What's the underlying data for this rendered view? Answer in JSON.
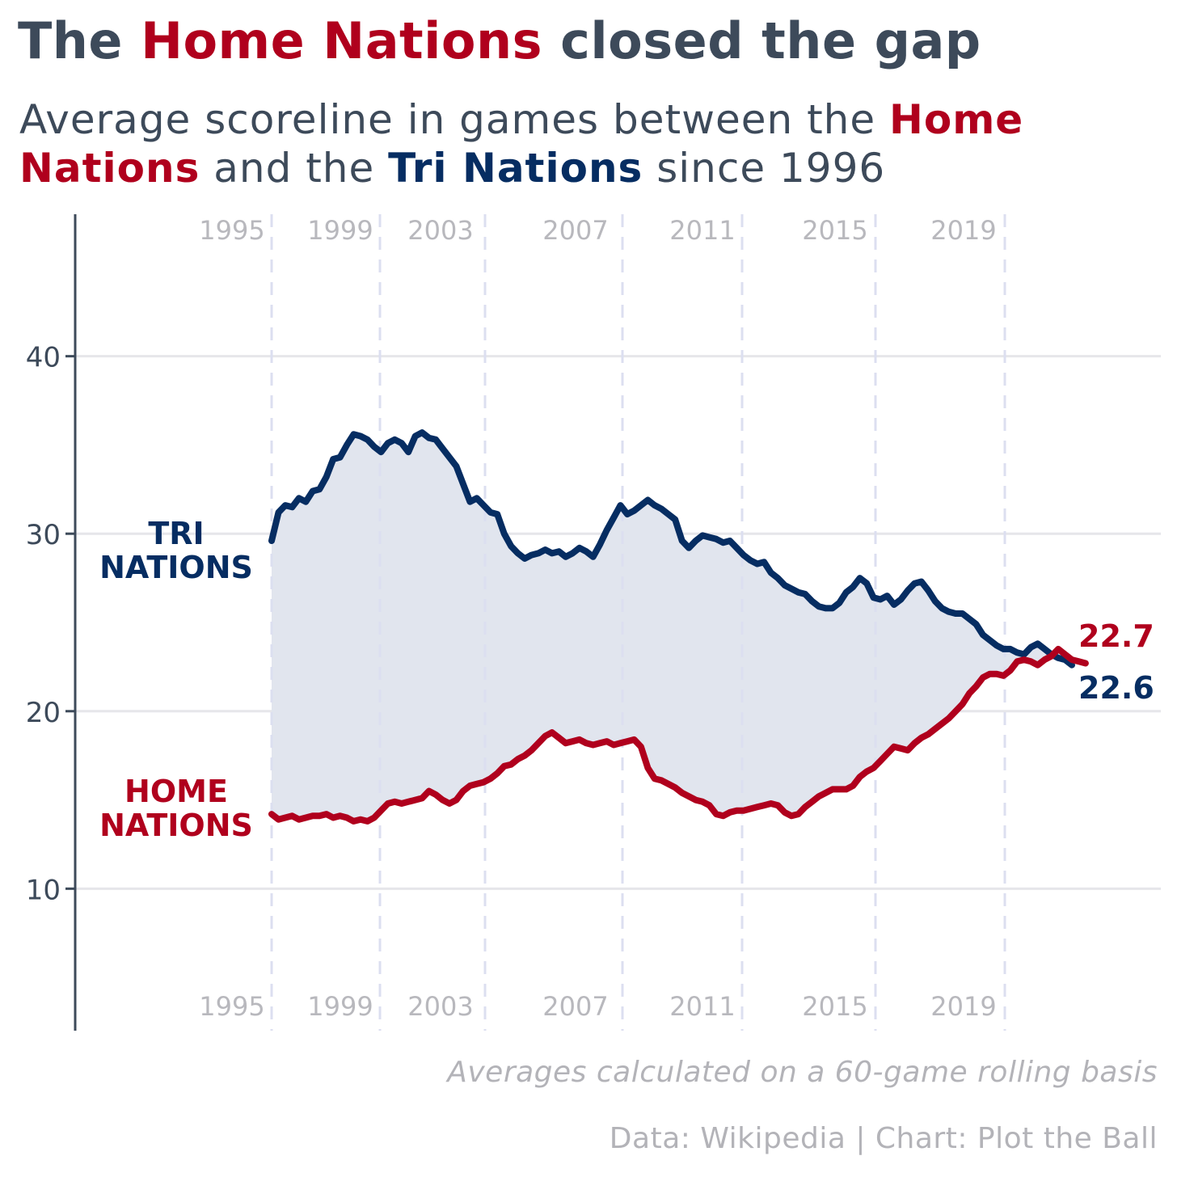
{
  "title": {
    "part1": "The ",
    "highlight": "Home Nations",
    "part2": " closed the gap"
  },
  "subtitle": {
    "part1": "Average scoreline in games between the ",
    "home": "Home Nations",
    "part2": " and the ",
    "tri": "Tri Nations",
    "part3": " since 1996"
  },
  "note": "Averages calculated on a 60-game rolling basis",
  "credit": "Data: Wikipedia | Chart: Plot the Ball",
  "colors": {
    "home": "#b0001d",
    "tri": "#062d62",
    "gap_fill": "#e1e5ee",
    "text": "#3d4a5a",
    "muted": "#b8b8bd",
    "grid": "#e6e6ea",
    "world_cup_line": "#dcdff0"
  },
  "chart_data": {
    "type": "line",
    "x_axis": "game index (60-game rolling window)",
    "ylim": [
      2,
      48
    ],
    "y_ticks": [
      10,
      20,
      30,
      40
    ],
    "world_cup_markers": [
      "1995",
      "1999",
      "2003",
      "2007",
      "2011",
      "2015",
      "2019"
    ],
    "series": [
      {
        "name": "TRI NATIONS",
        "key": "tri",
        "end_label": "22.6",
        "values": [
          29.6,
          31.2,
          31.6,
          31.5,
          32.0,
          31.8,
          32.4,
          32.5,
          33.2,
          34.2,
          34.3,
          35.0,
          35.6,
          35.5,
          35.3,
          34.9,
          34.6,
          35.1,
          35.3,
          35.1,
          34.6,
          35.5,
          35.7,
          35.4,
          35.3,
          34.8,
          34.3,
          33.8,
          32.8,
          31.8,
          32.0,
          31.6,
          31.2,
          31.1,
          30.0,
          29.3,
          28.9,
          28.6,
          28.8,
          28.9,
          29.1,
          28.9,
          29.0,
          28.7,
          28.9,
          29.2,
          29.0,
          28.7,
          29.4,
          30.2,
          30.9,
          31.6,
          31.1,
          31.3,
          31.6,
          31.9,
          31.6,
          31.4,
          31.1,
          30.8,
          29.6,
          29.2,
          29.6,
          29.9,
          29.8,
          29.7,
          29.5,
          29.6,
          29.2,
          28.8,
          28.5,
          28.3,
          28.4,
          27.8,
          27.5,
          27.1,
          26.9,
          26.7,
          26.6,
          26.2,
          25.9,
          25.8,
          25.8,
          26.1,
          26.7,
          27.0,
          27.5,
          27.2,
          26.4,
          26.3,
          26.5,
          26.0,
          26.3,
          26.8,
          27.2,
          27.3,
          26.8,
          26.2,
          25.8,
          25.6,
          25.5,
          25.5,
          25.2,
          24.9,
          24.3,
          24.0,
          23.7,
          23.5,
          23.5,
          23.3,
          23.2,
          23.6,
          23.8,
          23.5,
          23.2,
          23.0,
          22.9,
          22.6
        ]
      },
      {
        "name": "HOME NATIONS",
        "key": "home",
        "end_label": "22.7",
        "values": [
          14.2,
          13.9,
          14.0,
          14.1,
          13.9,
          14.0,
          14.1,
          14.1,
          14.2,
          14.0,
          14.1,
          14.0,
          13.8,
          13.9,
          13.8,
          14.0,
          14.4,
          14.8,
          14.9,
          14.8,
          14.9,
          15.0,
          15.1,
          15.5,
          15.3,
          15.0,
          14.8,
          15.0,
          15.5,
          15.8,
          15.9,
          16.0,
          16.2,
          16.5,
          16.9,
          17.0,
          17.3,
          17.5,
          17.8,
          18.2,
          18.6,
          18.8,
          18.5,
          18.2,
          18.3,
          18.4,
          18.2,
          18.1,
          18.2,
          18.3,
          18.1,
          18.2,
          18.3,
          18.4,
          18.0,
          16.8,
          16.2,
          16.1,
          15.9,
          15.7,
          15.4,
          15.2,
          15.0,
          14.9,
          14.7,
          14.2,
          14.1,
          14.3,
          14.4,
          14.4,
          14.5,
          14.6,
          14.7,
          14.8,
          14.7,
          14.3,
          14.1,
          14.2,
          14.6,
          14.9,
          15.2,
          15.4,
          15.6,
          15.6,
          15.6,
          15.8,
          16.3,
          16.6,
          16.8,
          17.2,
          17.6,
          18.0,
          17.9,
          17.8,
          18.2,
          18.5,
          18.7,
          19.0,
          19.3,
          19.6,
          20.0,
          20.4,
          21.0,
          21.4,
          21.9,
          22.1,
          22.1,
          22.0,
          22.3,
          22.8,
          22.9,
          22.8,
          22.6,
          22.9,
          23.1,
          23.5,
          23.2,
          22.9,
          22.8,
          22.7
        ]
      }
    ]
  }
}
